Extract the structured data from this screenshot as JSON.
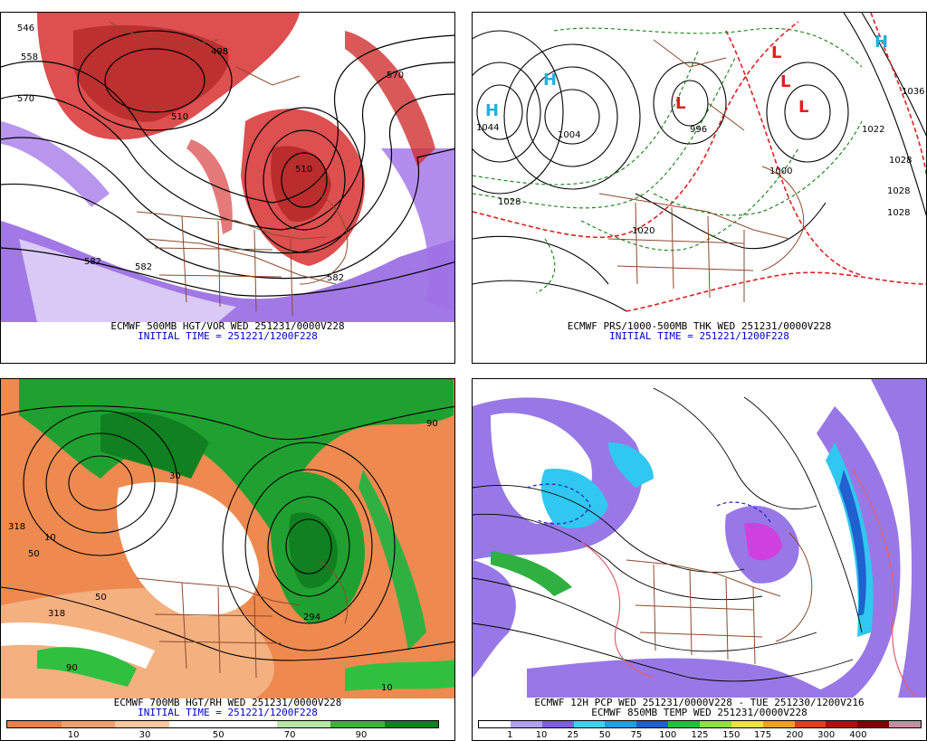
{
  "panels": {
    "top_left": {
      "caption": "ECMWF 500MB HGT/VOR WED 251231/0000V228",
      "init": "INITIAL TIME = 251221/1200F228",
      "contour_labels": [
        "546",
        "558",
        "570",
        "582",
        "582",
        "582",
        "570",
        "498",
        "510",
        "510"
      ]
    },
    "top_right": {
      "caption": "ECMWF PRS/1000-500MB THK WED 251231/0000V228",
      "init": "INITIAL TIME = 251221/1200F228",
      "pressure_labels": [
        "1044",
        "1028",
        "1028",
        "1028",
        "1028",
        "1036",
        "1022",
        "1000",
        "1004",
        "996",
        "1020"
      ],
      "high_low_symbols": [
        "H",
        "H",
        "L",
        "L",
        "L",
        "L",
        "H"
      ]
    },
    "bottom_left": {
      "caption": "ECMWF 700MB HGT/RH WED 251231/0000V228",
      "init": "INITIAL TIME = 251221/1200F228",
      "colorbar": {
        "colors": [
          "#e8824a",
          "#f0a070",
          "#f8c8a0",
          "#ffffff",
          "#ffffff",
          "#b8e6a8",
          "#40b040",
          "#108020"
        ],
        "ticks": [
          "10",
          "30",
          "50",
          "70",
          "90"
        ]
      },
      "contour_labels": [
        "318",
        "318",
        "50",
        "50",
        "10",
        "10",
        "90",
        "90",
        "30",
        "294"
      ]
    },
    "bottom_right": {
      "caption1": "ECMWF 12H PCP WED 251231/0000V228 - TUE 251230/1200V216",
      "caption2": "ECMWF 850MB TEMP WED 251231/0000V228",
      "colorbar": {
        "colors": [
          "#ffffff",
          "#b0a0f0",
          "#8060e0",
          "#40d0f0",
          "#20a0e0",
          "#2060d0",
          "#20c040",
          "#90e040",
          "#f0e040",
          "#f0a020",
          "#e04020",
          "#b01010",
          "#800000",
          "#c090a0"
        ],
        "ticks": [
          "1",
          "10",
          "25",
          "50",
          "75",
          "100",
          "125",
          "150",
          "175",
          "200",
          "300",
          "400"
        ]
      }
    }
  }
}
